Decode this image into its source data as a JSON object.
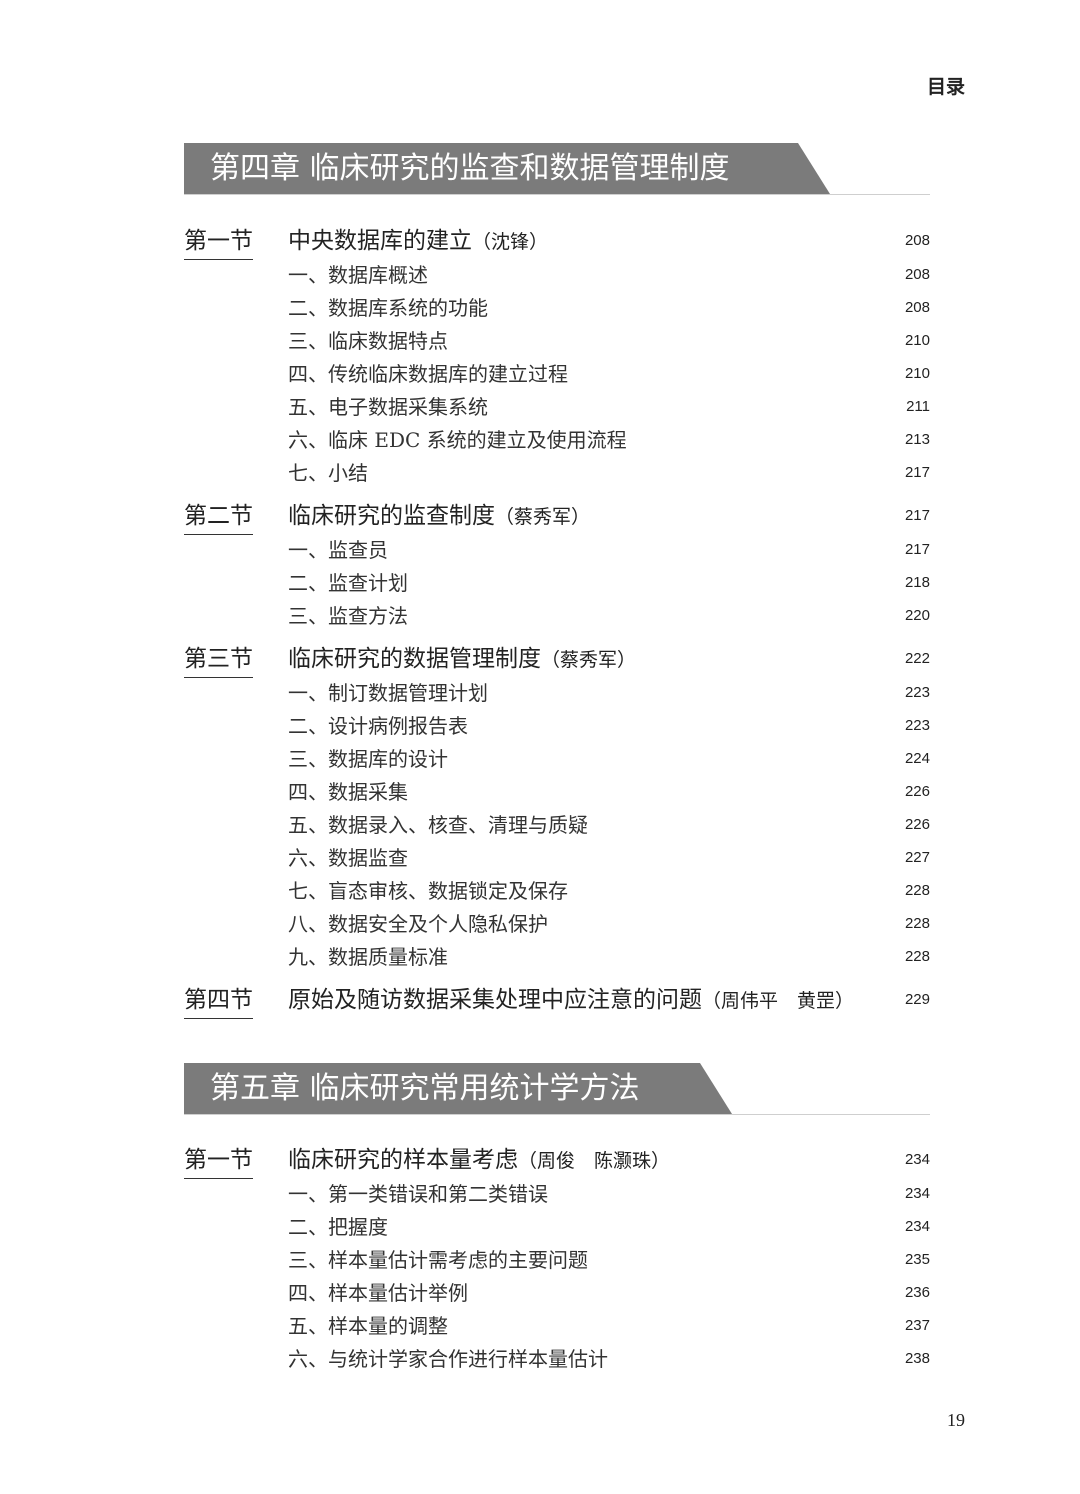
{
  "header": {
    "running_title": "目录"
  },
  "page_number": "19",
  "colors": {
    "banner": "#7b7b7b"
  },
  "chapters": [
    {
      "title": "第四章  临床研究的监查和数据管理制度",
      "sections": [
        {
          "label": "第一节",
          "title": "中央数据库的建立",
          "authors": "（沈锋）",
          "page": "208",
          "items": [
            {
              "title": "一、数据库概述",
              "page": "208"
            },
            {
              "title": "二、数据库系统的功能",
              "page": "208"
            },
            {
              "title": "三、临床数据特点",
              "page": "210"
            },
            {
              "title": "四、传统临床数据库的建立过程",
              "page": "210"
            },
            {
              "title": "五、电子数据采集系统",
              "page": "211"
            },
            {
              "title": "六、临床 EDC 系统的建立及使用流程",
              "page": "213"
            },
            {
              "title": "七、小结",
              "page": "217"
            }
          ]
        },
        {
          "label": "第二节",
          "title": "临床研究的监查制度",
          "authors": "（蔡秀军）",
          "page": "217",
          "items": [
            {
              "title": "一、监查员",
              "page": "217"
            },
            {
              "title": "二、监查计划",
              "page": "218"
            },
            {
              "title": "三、监查方法",
              "page": "220"
            }
          ]
        },
        {
          "label": "第三节",
          "title": "临床研究的数据管理制度",
          "authors": "（蔡秀军）",
          "page": "222",
          "items": [
            {
              "title": "一、制订数据管理计划",
              "page": "223"
            },
            {
              "title": "二、设计病例报告表",
              "page": "223"
            },
            {
              "title": "三、数据库的设计",
              "page": "224"
            },
            {
              "title": "四、数据采集",
              "page": "226"
            },
            {
              "title": "五、数据录入、核查、清理与质疑",
              "page": "226"
            },
            {
              "title": "六、数据监查",
              "page": "227"
            },
            {
              "title": "七、盲态审核、数据锁定及保存",
              "page": "228"
            },
            {
              "title": "八、数据安全及个人隐私保护",
              "page": "228"
            },
            {
              "title": "九、数据质量标准",
              "page": "228"
            }
          ]
        },
        {
          "label": "第四节",
          "title": "原始及随访数据采集处理中应注意的问题",
          "authors": "（周伟平　黄罡）",
          "page": "229",
          "items": []
        }
      ]
    },
    {
      "title": "第五章  临床研究常用统计学方法",
      "sections": [
        {
          "label": "第一节",
          "title": "临床研究的样本量考虑",
          "authors": "（周俊　陈灏珠）",
          "page": "234",
          "items": [
            {
              "title": "一、第一类错误和第二类错误",
              "page": "234"
            },
            {
              "title": "二、把握度",
              "page": "234"
            },
            {
              "title": "三、样本量估计需考虑的主要问题",
              "page": "235"
            },
            {
              "title": "四、样本量估计举例",
              "page": "236"
            },
            {
              "title": "五、样本量的调整",
              "page": "237"
            },
            {
              "title": "六、与统计学家合作进行样本量估计",
              "page": "238"
            }
          ]
        }
      ]
    }
  ]
}
